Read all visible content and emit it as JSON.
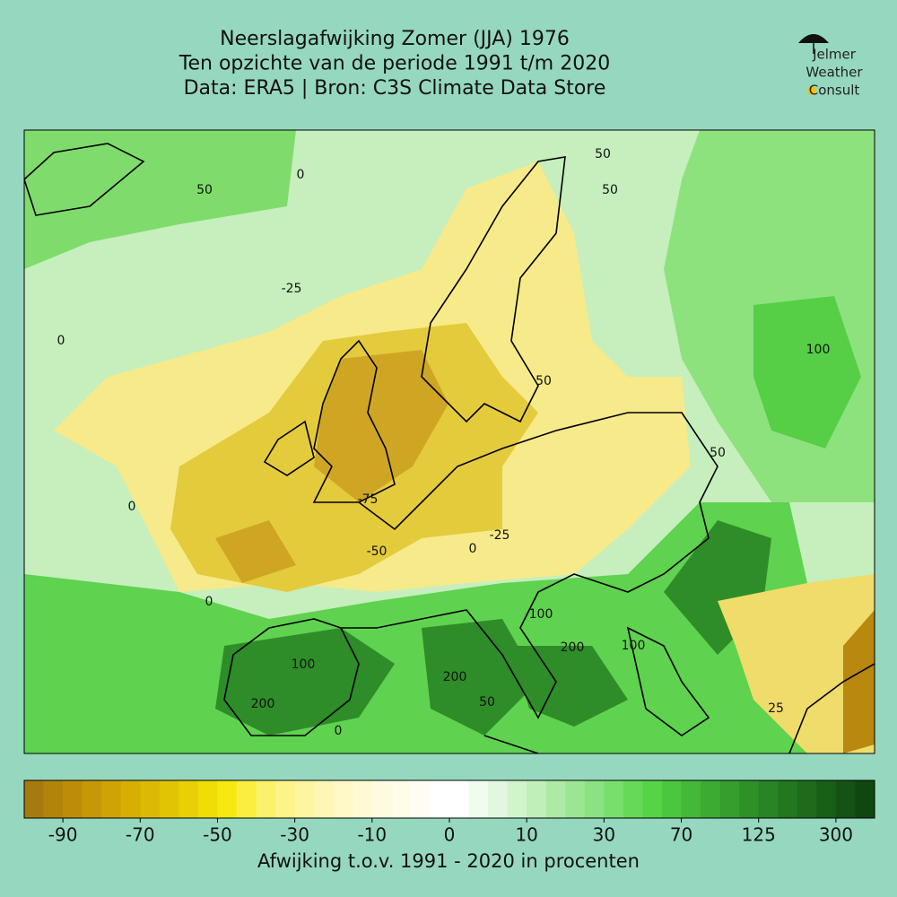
{
  "title": [
    "Neerslagafwijking Zomer (JJA) 1976",
    "Ten opzichte van de periode 1991 t/m 2020",
    "Data: ERA5 | Bron: C3S Climate Data Store"
  ],
  "logo": [
    "Jelmer",
    "Weather",
    "Consult"
  ],
  "map": {
    "contour_labels": [
      0,
      50,
      -25,
      0,
      100,
      50,
      50,
      -75,
      0,
      -50,
      -25,
      0,
      0,
      100,
      200,
      100,
      200,
      200,
      50,
      0,
      25,
      50,
      50,
      100
    ]
  },
  "colorbar": {
    "levels": [
      -100,
      -95,
      -90,
      -85,
      -80,
      -75,
      -70,
      -65,
      -60,
      -55,
      -50,
      -45,
      -40,
      -35,
      -30,
      -25,
      -20,
      -15,
      -10,
      -7.5,
      -5,
      -2.5,
      0,
      2.5,
      5,
      7.5,
      10,
      15,
      20,
      25,
      30,
      40,
      50,
      60,
      70,
      85,
      100,
      112.5,
      125,
      150,
      200,
      250,
      300,
      350,
      400
    ],
    "colors": [
      "#a67a0e",
      "#b2840b",
      "#bd8d08",
      "#c69806",
      "#cfa304",
      "#d6ae04",
      "#dcb904",
      "#e2c404",
      "#e8d004",
      "#f0dd06",
      "#f8e812",
      "#fbee40",
      "#fcf16a",
      "#fdf388",
      "#fdf5a0",
      "#fef7b4",
      "#fef9c6",
      "#fefad4",
      "#fffbe0",
      "#fffce9",
      "#fffdf3",
      "#ffffff",
      "#ffffff",
      "#f0fcee",
      "#e2f8de",
      "#d2f4cd",
      "#c0efba",
      "#aeeaa6",
      "#9ce693",
      "#8ae280",
      "#78de6c",
      "#66da58",
      "#56d446",
      "#4cc63e",
      "#44b838",
      "#3cab32",
      "#359e2d",
      "#2e9128",
      "#288424",
      "#22771f",
      "#1d6b1b",
      "#185f17",
      "#145313",
      "#104710"
    ],
    "ticks": [
      -90,
      -70,
      -50,
      -30,
      -10,
      0,
      10,
      30,
      70,
      125,
      300
    ],
    "label": "Afwijking t.o.v. 1991 - 2020 in procenten"
  }
}
